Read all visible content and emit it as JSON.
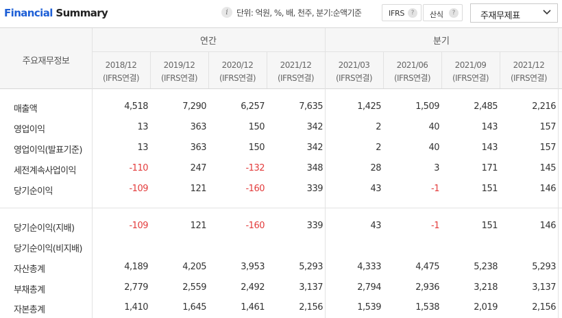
{
  "header": {
    "title_blue": "Financial",
    "title_dark": "Summary",
    "info_icon": "i",
    "unit_text": "단위: 억원, %, 배, 천주, 분기:순액기준",
    "ifrs_label": "IFRS",
    "calc_label": "산식",
    "help_icon": "?",
    "dropdown_label": "주재무제표"
  },
  "table": {
    "row_header": "주요재무정보",
    "groups": {
      "annual": "연간",
      "quarterly": "분기"
    },
    "periods": [
      {
        "date": "2018/12",
        "basis": "(IFRS연결)"
      },
      {
        "date": "2019/12",
        "basis": "(IFRS연결)"
      },
      {
        "date": "2020/12",
        "basis": "(IFRS연결)"
      },
      {
        "date": "2021/12",
        "basis": "(IFRS연결)"
      },
      {
        "date": "2021/03",
        "basis": "(IFRS연결)"
      },
      {
        "date": "2021/06",
        "basis": "(IFRS연결)"
      },
      {
        "date": "2021/09",
        "basis": "(IFRS연결)"
      },
      {
        "date": "2021/12",
        "basis": "(IFRS연결)"
      }
    ],
    "rows": [
      {
        "label": "매출액",
        "values": [
          "4,518",
          "7,290",
          "6,257",
          "7,635",
          "1,425",
          "1,509",
          "2,485",
          "2,216"
        ]
      },
      {
        "label": "영업이익",
        "values": [
          "13",
          "363",
          "150",
          "342",
          "2",
          "40",
          "143",
          "157"
        ]
      },
      {
        "label": "영업이익(발표기준)",
        "values": [
          "13",
          "363",
          "150",
          "342",
          "2",
          "40",
          "143",
          "157"
        ]
      },
      {
        "label": "세전계속사업이익",
        "values": [
          "-110",
          "247",
          "-132",
          "348",
          "28",
          "3",
          "171",
          "145"
        ]
      },
      {
        "label": "당기순이익",
        "values": [
          "-109",
          "121",
          "-160",
          "339",
          "43",
          "-1",
          "151",
          "146"
        ]
      },
      {
        "label": "당기순이익(지배)",
        "values": [
          "-109",
          "121",
          "-160",
          "339",
          "43",
          "-1",
          "151",
          "146"
        ]
      },
      {
        "label": "당기순이익(비지배)",
        "values": [
          "",
          "",
          "",
          "",
          "",
          "",
          "",
          ""
        ]
      },
      {
        "label": "자산총계",
        "values": [
          "4,189",
          "4,205",
          "3,953",
          "5,293",
          "4,333",
          "4,475",
          "5,238",
          "5,293"
        ]
      },
      {
        "label": "부채총계",
        "values": [
          "2,779",
          "2,559",
          "2,492",
          "3,137",
          "2,794",
          "2,936",
          "3,218",
          "3,137"
        ]
      },
      {
        "label": "자본총계",
        "values": [
          "1,410",
          "1,645",
          "1,461",
          "2,156",
          "1,539",
          "1,538",
          "2,019",
          "2,156"
        ]
      }
    ]
  },
  "colors": {
    "accent": "#1e5fd6",
    "negative": "#e33b3b",
    "header_bg": "#f6f6f6",
    "border": "#d7d7d7"
  },
  "icons": {
    "info": "info-icon",
    "help": "help-icon",
    "dropdown": "chevron-down-icon"
  }
}
